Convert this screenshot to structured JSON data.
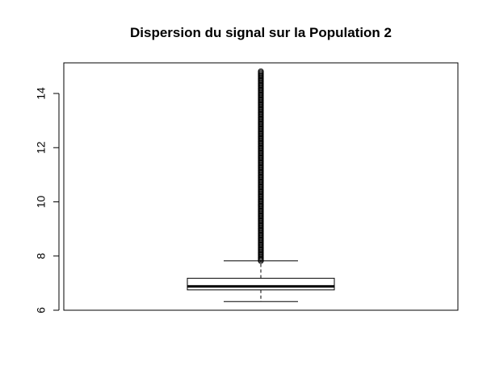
{
  "chart_data": {
    "type": "boxplot",
    "title": "Dispersion du signal sur la Population 2",
    "xlabel": "",
    "ylabel": "",
    "ylim": [
      6,
      15
    ],
    "yticks": [
      6,
      8,
      10,
      12,
      14
    ],
    "ytick_labels": [
      "6",
      "8",
      "10",
      "12",
      "14"
    ],
    "grid": false,
    "box": {
      "lower_whisker": 6.32,
      "q1": 6.75,
      "median": 6.88,
      "q3": 7.18,
      "upper_whisker": 7.82,
      "outliers_from": 7.82,
      "outliers_to": 14.82
    },
    "colors": {
      "line": "#000000",
      "box_fill": "#ffffff",
      "background": "#ffffff"
    }
  }
}
